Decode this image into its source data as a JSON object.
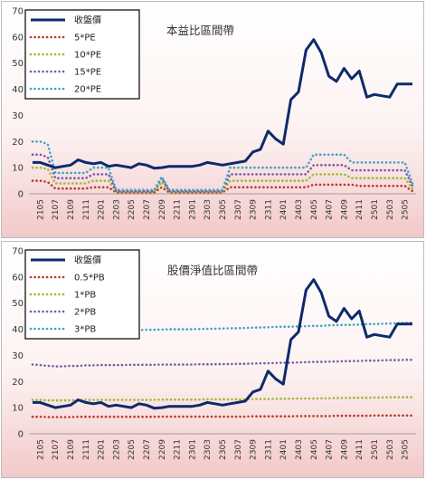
{
  "chart_data": [
    {
      "type": "line",
      "title": "本益比區間帶",
      "ylim": [
        0,
        70
      ],
      "yticks": [
        0,
        10,
        20,
        30,
        40,
        50,
        60,
        70
      ],
      "grid": false,
      "legend_position": "top-left",
      "x": [
        "2104",
        "2105",
        "2106",
        "2107",
        "2108",
        "2109",
        "2110",
        "2111",
        "2112",
        "2201",
        "2202",
        "2203",
        "2204",
        "2205",
        "2206",
        "2207",
        "2208",
        "2209",
        "2210",
        "2211",
        "2212",
        "2301",
        "2302",
        "2303",
        "2304",
        "2305",
        "2306",
        "2307",
        "2308",
        "2309",
        "2310",
        "2311",
        "2312",
        "2401",
        "2402",
        "2403",
        "2404",
        "2405",
        "2406",
        "2407",
        "2408",
        "2409",
        "2410",
        "2411",
        "2412",
        "2501",
        "2502",
        "2503",
        "2504",
        "2505",
        "2506"
      ],
      "xtick_labels": [
        "2105",
        "2107",
        "2109",
        "2111",
        "2201",
        "2203",
        "2205",
        "2207",
        "2209",
        "2211",
        "2301",
        "2303",
        "2305",
        "2307",
        "2309",
        "2311",
        "2401",
        "2403",
        "2405",
        "2407",
        "2409",
        "2411",
        "2501",
        "2503",
        "2505"
      ],
      "series": [
        {
          "name": "收盤價",
          "color": "#0d2a6b",
          "style": "solid",
          "values": [
            12,
            12,
            11,
            10,
            10.5,
            11,
            13,
            12,
            11.5,
            12,
            10.5,
            11,
            10.5,
            10,
            11.5,
            11,
            9.8,
            10,
            10.5,
            10.5,
            10.5,
            10.5,
            11,
            12,
            11.5,
            11,
            11.5,
            12,
            12.5,
            16,
            17,
            24,
            21,
            19,
            36,
            39,
            55,
            59,
            54,
            45,
            43,
            48,
            44,
            47,
            37,
            38,
            37.5,
            37,
            42,
            42,
            42
          ]
        },
        {
          "name": "5*PE",
          "color": "#c0392b",
          "style": "dotted",
          "values": [
            5,
            5,
            4.5,
            2,
            2,
            2,
            2,
            2,
            2.5,
            2.5,
            2.5,
            0.5,
            0.5,
            0.5,
            0.5,
            0.5,
            0.5,
            2.5,
            0.5,
            0.5,
            0.5,
            0.5,
            0.5,
            0.5,
            0.5,
            0.5,
            2.5,
            2.5,
            2.5,
            2.5,
            2.5,
            2.5,
            2.5,
            2.5,
            2.5,
            2.5,
            2.5,
            3.5,
            3.5,
            3.5,
            3.5,
            3.5,
            3.5,
            3,
            3,
            3,
            3,
            3,
            3,
            3,
            1
          ]
        },
        {
          "name": "10*PE",
          "color": "#9bbb3a",
          "style": "dotted",
          "values": [
            10,
            10,
            9.5,
            4,
            4,
            4,
            4,
            4,
            5,
            5,
            5,
            0.7,
            0.7,
            0.7,
            0.7,
            0.7,
            0.7,
            4.5,
            0.7,
            0.7,
            0.7,
            0.7,
            0.7,
            0.7,
            0.7,
            0.7,
            5,
            5,
            5,
            5,
            5,
            5,
            5,
            5,
            5,
            5,
            5,
            7.5,
            7.5,
            7.5,
            7.5,
            7.5,
            6,
            6,
            6,
            6,
            6,
            6,
            6,
            6,
            2
          ]
        },
        {
          "name": "15*PE",
          "color": "#7b5aa6",
          "style": "dotted",
          "values": [
            15,
            15,
            14,
            6,
            6,
            6,
            6,
            6,
            7.5,
            7.5,
            7.5,
            1,
            1,
            1,
            1,
            1,
            1,
            6,
            1,
            1,
            1,
            1,
            1,
            1,
            1,
            1,
            7.5,
            7.5,
            7.5,
            7.5,
            7.5,
            7.5,
            7.5,
            7.5,
            7.5,
            7.5,
            7.5,
            11,
            11,
            11,
            11,
            11,
            9,
            9,
            9,
            9,
            9,
            9,
            9,
            9,
            3
          ]
        },
        {
          "name": "20*PE",
          "color": "#3aa8c1",
          "style": "dotted",
          "values": [
            20,
            20,
            19,
            8,
            8,
            8,
            8,
            8,
            10,
            10,
            10,
            1.5,
            1.5,
            1.5,
            1.5,
            1.5,
            1.5,
            6.5,
            1.5,
            1.5,
            1.5,
            1.5,
            1.5,
            1.5,
            1.5,
            1.5,
            10,
            10,
            10,
            10,
            10,
            10,
            10,
            10,
            10,
            10,
            10,
            15,
            15,
            15,
            15,
            15,
            12,
            12,
            12,
            12,
            12,
            12,
            12,
            12,
            4
          ]
        }
      ]
    },
    {
      "type": "line",
      "title": "股價淨值比區間帶",
      "ylim": [
        0,
        70
      ],
      "yticks": [
        0,
        10,
        20,
        30,
        40,
        50,
        60,
        70
      ],
      "grid": false,
      "legend_position": "top-left",
      "x": [
        "2104",
        "2105",
        "2106",
        "2107",
        "2108",
        "2109",
        "2110",
        "2111",
        "2112",
        "2201",
        "2202",
        "2203",
        "2204",
        "2205",
        "2206",
        "2207",
        "2208",
        "2209",
        "2210",
        "2211",
        "2212",
        "2301",
        "2302",
        "2303",
        "2304",
        "2305",
        "2306",
        "2307",
        "2308",
        "2309",
        "2310",
        "2311",
        "2312",
        "2401",
        "2402",
        "2403",
        "2404",
        "2405",
        "2406",
        "2407",
        "2408",
        "2409",
        "2410",
        "2411",
        "2412",
        "2501",
        "2502",
        "2503",
        "2504",
        "2505",
        "2506"
      ],
      "xtick_labels": [
        "2105",
        "2107",
        "2109",
        "2111",
        "2201",
        "2203",
        "2205",
        "2207",
        "2209",
        "2211",
        "2301",
        "2303",
        "2305",
        "2307",
        "2309",
        "2311",
        "2401",
        "2403",
        "2405",
        "2407",
        "2409",
        "2411",
        "2501",
        "2503",
        "2505"
      ],
      "series": [
        {
          "name": "收盤價",
          "color": "#0d2a6b",
          "style": "solid",
          "values": [
            12,
            12,
            11,
            10,
            10.5,
            11,
            13,
            12,
            11.5,
            12,
            10.5,
            11,
            10.5,
            10,
            11.5,
            11,
            9.8,
            10,
            10.5,
            10.5,
            10.5,
            10.5,
            11,
            12,
            11.5,
            11,
            11.5,
            12,
            12.5,
            16,
            17,
            24,
            21,
            19,
            36,
            39,
            55,
            59,
            54,
            45,
            43,
            48,
            44,
            47,
            37,
            38,
            37.5,
            37,
            42,
            42,
            42
          ]
        },
        {
          "name": "0.5*PB",
          "color": "#c0392b",
          "style": "dotted",
          "values": [
            6.5,
            6.5,
            6.4,
            6.4,
            6.4,
            6.4,
            6.5,
            6.5,
            6.5,
            6.5,
            6.5,
            6.5,
            6.5,
            6.5,
            6.5,
            6.5,
            6.5,
            6.6,
            6.6,
            6.6,
            6.6,
            6.6,
            6.6,
            6.6,
            6.6,
            6.6,
            6.6,
            6.6,
            6.6,
            6.7,
            6.7,
            6.7,
            6.7,
            6.7,
            6.7,
            6.8,
            6.8,
            6.8,
            6.8,
            6.8,
            6.9,
            6.9,
            6.9,
            6.9,
            6.9,
            7,
            7,
            7,
            7,
            7,
            7
          ]
        },
        {
          "name": "1*PB",
          "color": "#9bbb3a",
          "style": "dotted",
          "values": [
            13,
            13,
            12.8,
            12.8,
            12.8,
            12.8,
            13,
            13,
            13,
            13,
            13,
            13,
            13,
            13,
            13,
            13,
            13,
            13.1,
            13.1,
            13.1,
            13.1,
            13.1,
            13.1,
            13.2,
            13.2,
            13.2,
            13.2,
            13.2,
            13.2,
            13.3,
            13.3,
            13.3,
            13.4,
            13.4,
            13.4,
            13.5,
            13.5,
            13.5,
            13.6,
            13.6,
            13.7,
            13.7,
            13.8,
            13.8,
            13.8,
            13.9,
            13.9,
            14,
            14,
            14,
            14
          ]
        },
        {
          "name": "2*PB",
          "color": "#7b5aa6",
          "style": "dotted",
          "values": [
            26.5,
            26.3,
            26,
            25.8,
            25.8,
            26,
            26,
            26.2,
            26.2,
            26.3,
            26.3,
            26.3,
            26.3,
            26.4,
            26.4,
            26.4,
            26.4,
            26.5,
            26.5,
            26.5,
            26.5,
            26.5,
            26.6,
            26.6,
            26.6,
            26.7,
            26.7,
            26.8,
            26.8,
            26.9,
            27,
            27,
            27.1,
            27.2,
            27.2,
            27.3,
            27.4,
            27.5,
            27.5,
            27.6,
            27.7,
            27.8,
            27.8,
            27.9,
            28,
            28,
            28.1,
            28.2,
            28.2,
            28.3,
            28.3
          ]
        },
        {
          "name": "3*PB",
          "color": "#3aa8c1",
          "style": "dotted",
          "values": [
            39.5,
            39.2,
            38.8,
            38.5,
            38.5,
            38.8,
            39,
            39.2,
            39.3,
            39.5,
            39.5,
            39.5,
            39.6,
            39.7,
            39.7,
            39.8,
            39.8,
            39.9,
            40,
            40,
            40,
            40,
            40.1,
            40.2,
            40.2,
            40.3,
            40.4,
            40.4,
            40.5,
            40.6,
            40.7,
            40.8,
            40.9,
            41,
            41,
            41.1,
            41.2,
            41.3,
            41.3,
            41.5,
            41.6,
            41.7,
            41.7,
            41.8,
            42,
            42,
            42.1,
            42.2,
            42.3,
            42.4,
            42.5
          ]
        }
      ]
    }
  ]
}
